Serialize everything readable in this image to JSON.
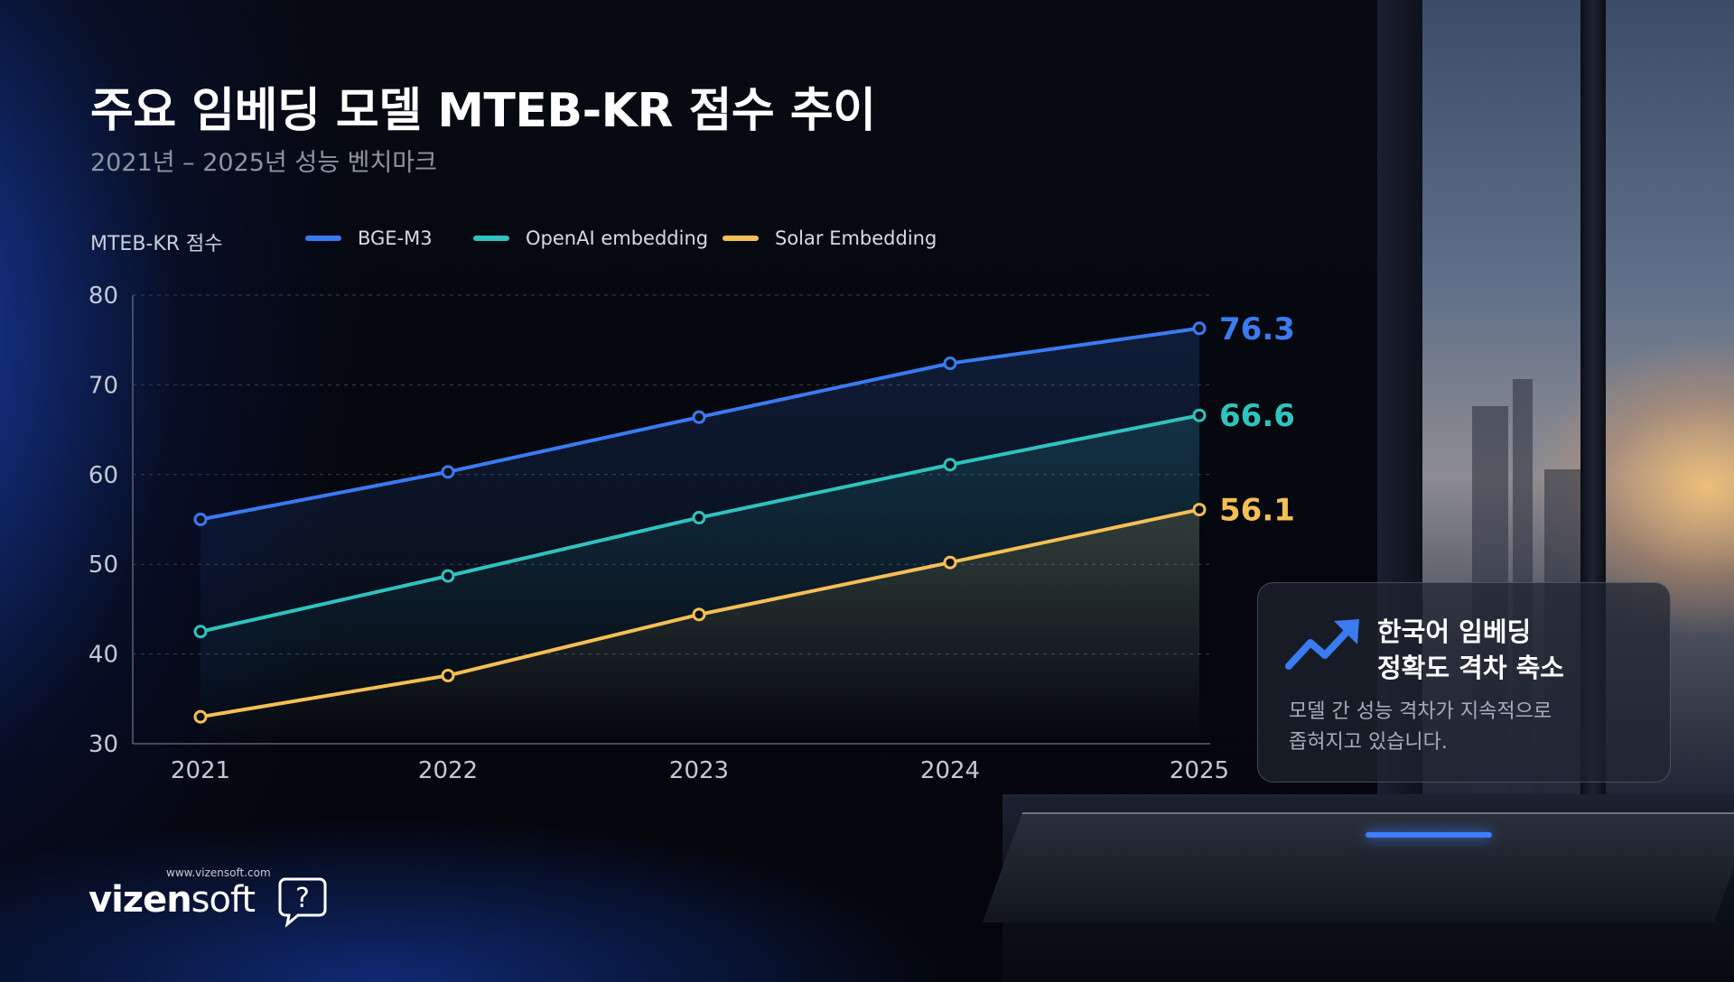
{
  "title": "주요 임베딩 모델 MTEB-KR 점수 추이",
  "subtitle": "2021년 – 2025년 성능 벤치마크",
  "colors": {
    "bge": "#3a7bf2",
    "openai": "#2fc3bf",
    "solar": "#f5bf55",
    "background": "#05070d"
  },
  "chart_data": {
    "type": "line",
    "title": "주요 임베딩 모델 MTEB-KR 점수 추이",
    "subtitle": "2021년 – 2025년 성능 벤치마크",
    "ylabel": "MTEB-KR 점수",
    "xlabel": "",
    "x": [
      "2021",
      "2022",
      "2023",
      "2024",
      "2025"
    ],
    "ylim": [
      30,
      80
    ],
    "yticks": [
      80,
      70,
      60,
      50,
      40,
      30
    ],
    "grid": true,
    "legend_position": "top",
    "series": [
      {
        "name": "BGE-M3",
        "color": "#3a7bf2",
        "values": [
          55.0,
          60.3,
          66.4,
          72.4,
          76.3
        ],
        "end_label": "76.3"
      },
      {
        "name": "OpenAI embedding",
        "color": "#2fc3bf",
        "values": [
          42.5,
          48.7,
          55.2,
          61.1,
          66.6
        ],
        "end_label": "66.6"
      },
      {
        "name": "Solar Embedding",
        "color": "#f5bf55",
        "values": [
          33.0,
          37.6,
          44.4,
          50.2,
          56.1
        ],
        "end_label": "56.1"
      }
    ]
  },
  "callout": {
    "icon": "trend-up-arrow-icon",
    "heading_line1": "한국어 임베딩",
    "heading_line2": "정확도 격차 축소",
    "body_line1": "모델 간 성능 격차가 지속적으로",
    "body_line2": "좁혀지고 있습니다."
  },
  "logo": {
    "url": "www.vizensoft.com",
    "name_bold": "vizen",
    "name_light": "soft",
    "mark": "?"
  }
}
